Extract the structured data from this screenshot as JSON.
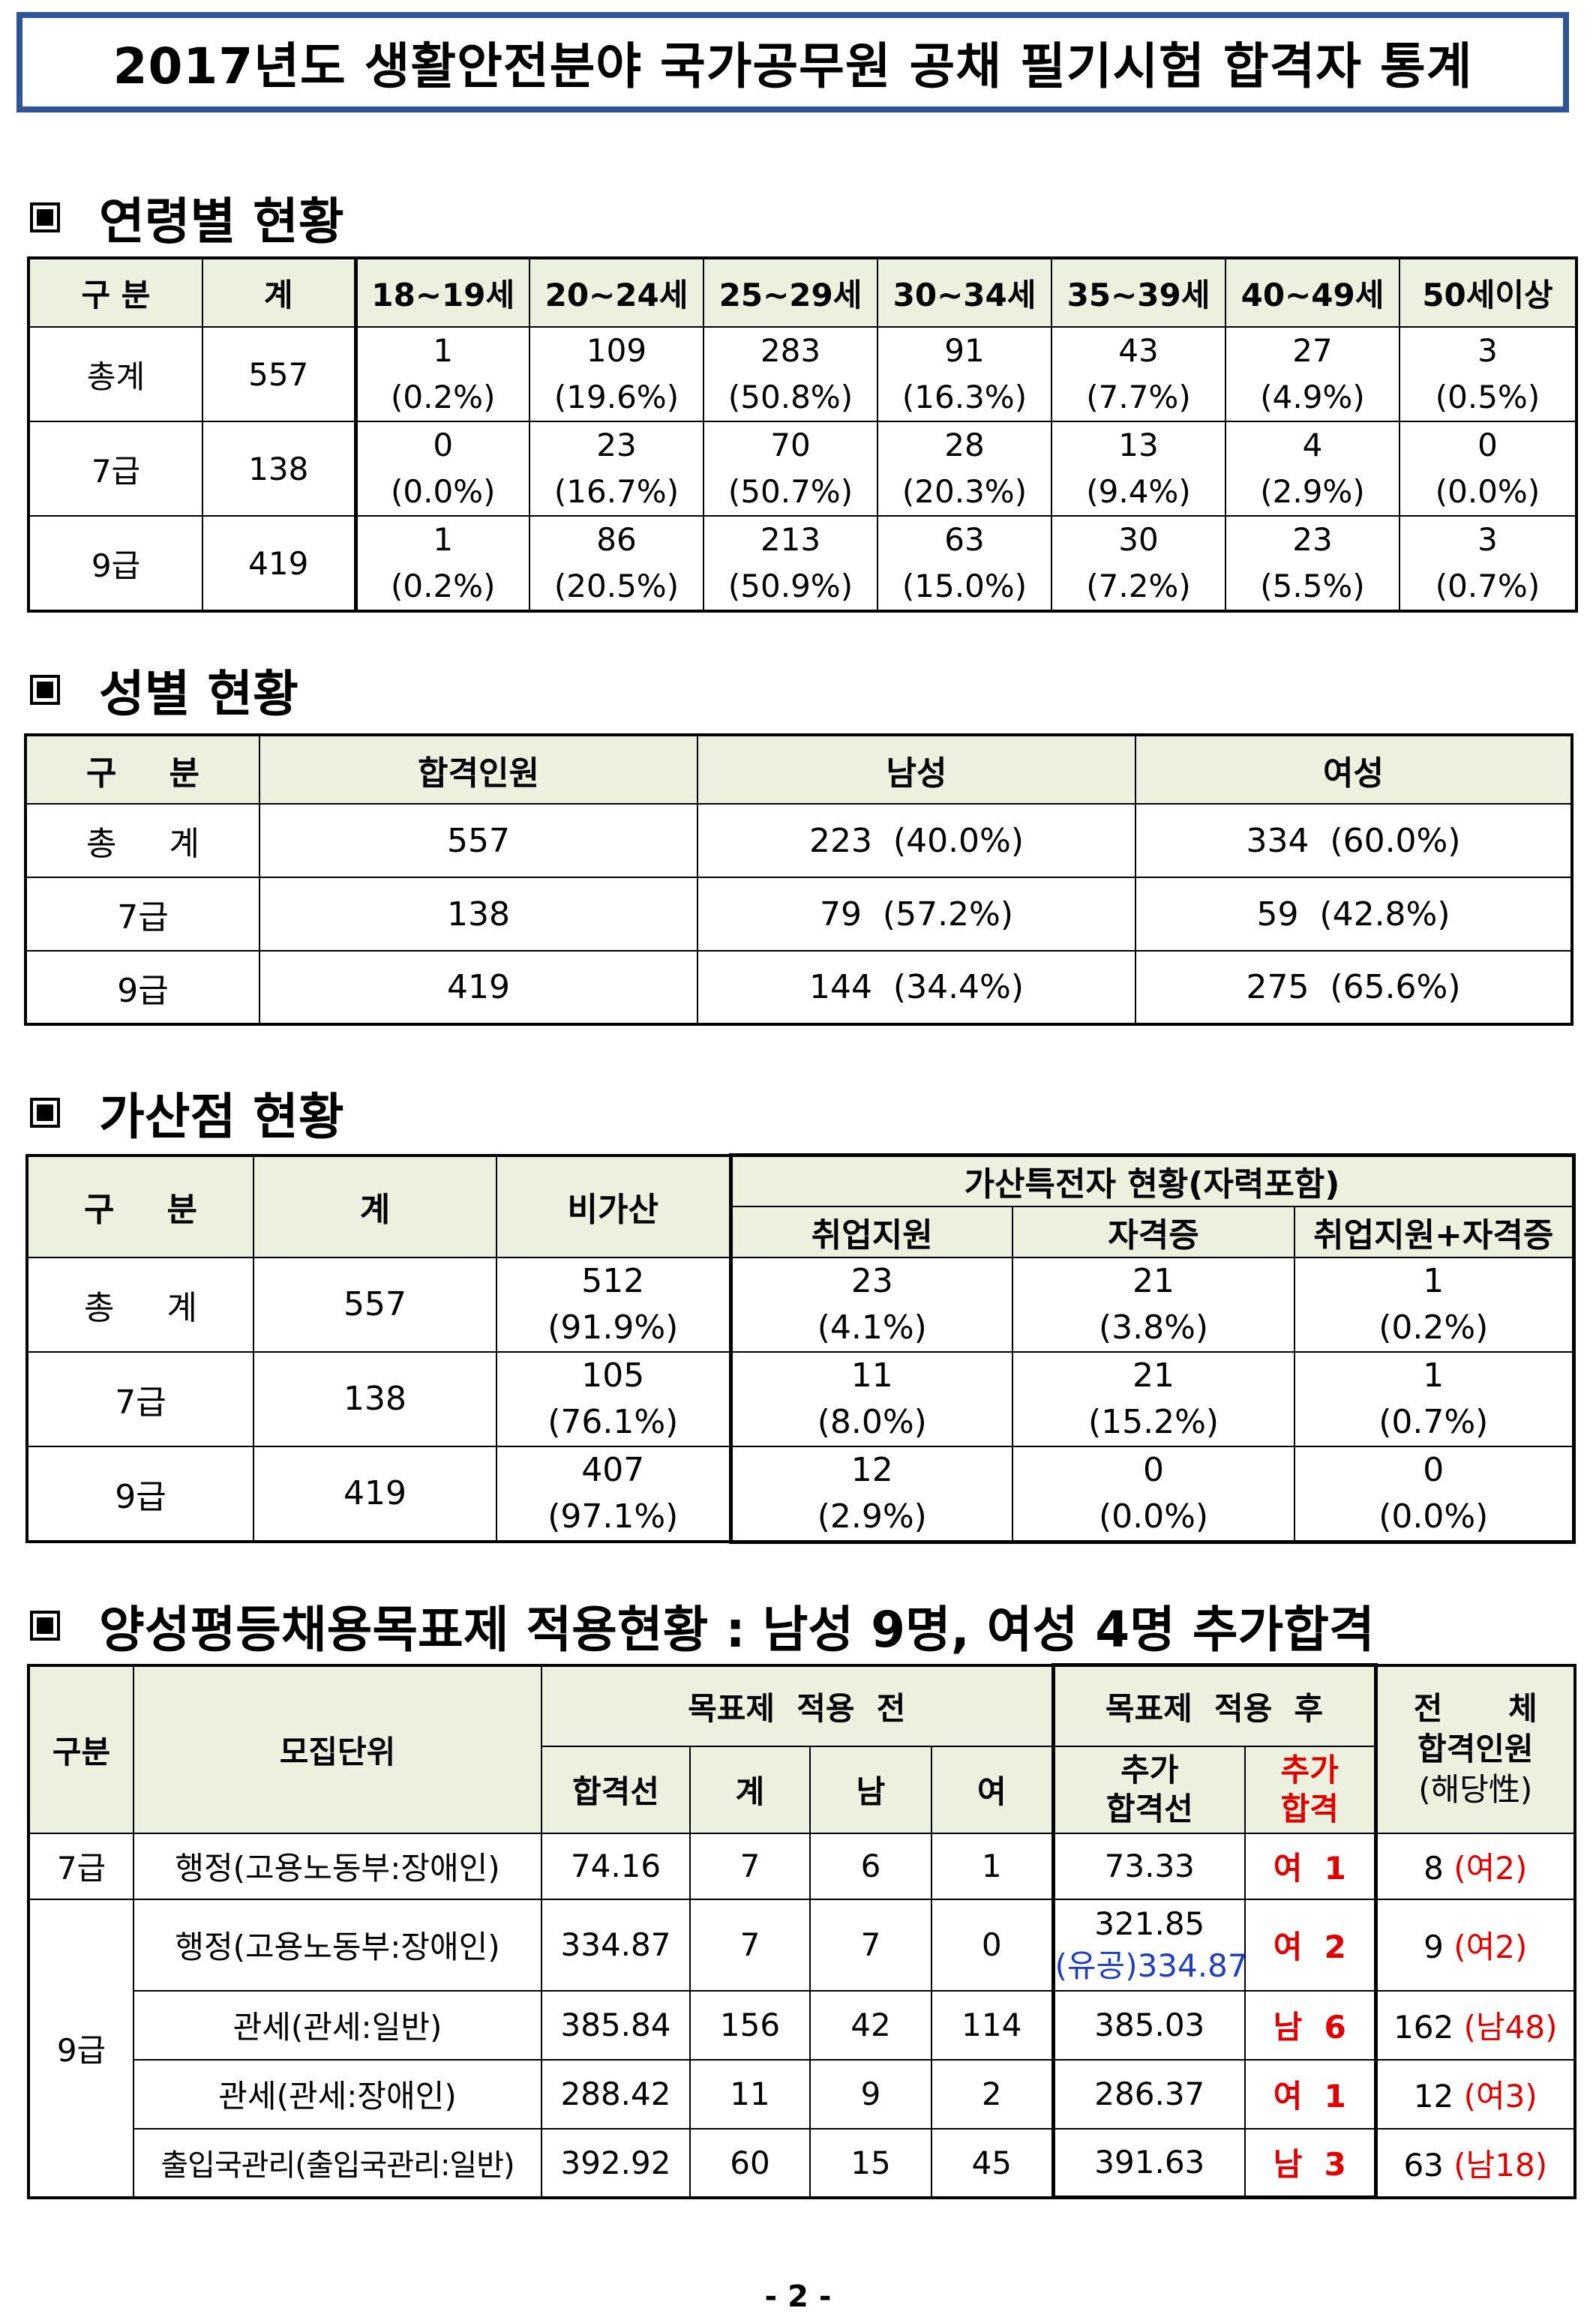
{
  "title": "2017년도 생활안전분야 국가공무원 공채 필기시험 합격자 통계",
  "sections": {
    "age": "연령별 현황",
    "gender": "성별 현황",
    "bonus": "가산점 현황",
    "equality": "양성평등채용목표제 적용현황 : 남성 9명, 여성 4명 추가합격"
  },
  "age_table": {
    "headers": [
      "구 분",
      "계",
      "18~19세",
      "20~24세",
      "25~29세",
      "30~34세",
      "35~39세",
      "40~49세",
      "50세이상"
    ],
    "rows": [
      {
        "label": "총계",
        "total": "557",
        "cells": [
          [
            "1",
            "(0.2%)"
          ],
          [
            "109",
            "(19.6%)"
          ],
          [
            "283",
            "(50.8%)"
          ],
          [
            "91",
            "(16.3%)"
          ],
          [
            "43",
            "(7.7%)"
          ],
          [
            "27",
            "(4.9%)"
          ],
          [
            "3",
            "(0.5%)"
          ]
        ]
      },
      {
        "label": "7급",
        "total": "138",
        "cells": [
          [
            "0",
            "(0.0%)"
          ],
          [
            "23",
            "(16.7%)"
          ],
          [
            "70",
            "(50.7%)"
          ],
          [
            "28",
            "(20.3%)"
          ],
          [
            "13",
            "(9.4%)"
          ],
          [
            "4",
            "(2.9%)"
          ],
          [
            "0",
            "(0.0%)"
          ]
        ]
      },
      {
        "label": "9급",
        "total": "419",
        "cells": [
          [
            "1",
            "(0.2%)"
          ],
          [
            "86",
            "(20.5%)"
          ],
          [
            "213",
            "(50.9%)"
          ],
          [
            "63",
            "(15.0%)"
          ],
          [
            "30",
            "(7.2%)"
          ],
          [
            "23",
            "(5.5%)"
          ],
          [
            "3",
            "(0.7%)"
          ]
        ]
      }
    ]
  },
  "gender_table": {
    "headers": [
      "구",
      "분",
      "합격인원",
      "남성",
      "여성"
    ],
    "rows": [
      {
        "label_a": "총",
        "label_b": "계",
        "passed": "557",
        "male": "223  (40.0%)",
        "female": "334  (60.0%)"
      },
      {
        "label_a": "7급",
        "label_b": "",
        "passed": "138",
        "male": "79  (57.2%)",
        "female": "59  (42.8%)"
      },
      {
        "label_a": "9급",
        "label_b": "",
        "passed": "419",
        "male": "144  (34.4%)",
        "female": "275  (65.6%)"
      }
    ]
  },
  "bonus_table": {
    "header_a": "구",
    "header_b": "분",
    "header_total": "계",
    "header_none": "비가산",
    "header_group": "가산특전자  현황(자력포함)",
    "sub_headers": [
      "취업지원",
      "자격증",
      "취업지원+자격증"
    ],
    "rows": [
      {
        "label_a": "총",
        "label_b": "계",
        "total": "557",
        "cells": [
          [
            "512",
            "(91.9%)"
          ],
          [
            "23",
            "(4.1%)"
          ],
          [
            "21",
            "(3.8%)"
          ],
          [
            "1",
            "(0.2%)"
          ]
        ]
      },
      {
        "label_a": "7급",
        "label_b": "",
        "total": "138",
        "cells": [
          [
            "105",
            "(76.1%)"
          ],
          [
            "11",
            "(8.0%)"
          ],
          [
            "21",
            "(15.2%)"
          ],
          [
            "1",
            "(0.7%)"
          ]
        ]
      },
      {
        "label_a": "9급",
        "label_b": "",
        "total": "419",
        "cells": [
          [
            "407",
            "(97.1%)"
          ],
          [
            "12",
            "(2.9%)"
          ],
          [
            "0",
            "(0.0%)"
          ],
          [
            "0",
            "(0.0%)"
          ]
        ]
      }
    ]
  },
  "equality_table": {
    "h_grade": "구분",
    "h_unit": "모집단위",
    "h_before": "목표제  적용  전",
    "h_after": "목표제  적용  후",
    "h_total_a": "전      체",
    "h_total_b": "합격인원",
    "h_total_c": "(해당性)",
    "h_cut": "합격선",
    "h_sum": "계",
    "h_male": "남",
    "h_female": "여",
    "h_add_cut_a": "추가",
    "h_add_cut_b": "합격선",
    "h_add_pass_a": "추가",
    "h_add_pass_b": "합격",
    "grade7": "7급",
    "grade9": "9급",
    "rows": [
      {
        "unit": "행정(고용노동부:장애인)",
        "cut": "74.16",
        "sum": "7",
        "male": "6",
        "female": "1",
        "add_cut": "73.33",
        "add_cut_note": "",
        "add_pass": "여  1",
        "total": "8",
        "total_note": "(여2)"
      },
      {
        "unit": "행정(고용노동부:장애인)",
        "cut": "334.87",
        "sum": "7",
        "male": "7",
        "female": "0",
        "add_cut": "321.85",
        "add_cut_note": "(유공)334.87",
        "add_pass": "여  2",
        "total": "9",
        "total_note": "(여2)"
      },
      {
        "unit": "관세(관세:일반)",
        "cut": "385.84",
        "sum": "156",
        "male": "42",
        "female": "114",
        "add_cut": "385.03",
        "add_cut_note": "",
        "add_pass": "남  6",
        "total": "162",
        "total_note": "(남48)"
      },
      {
        "unit": "관세(관세:장애인)",
        "cut": "288.42",
        "sum": "11",
        "male": "9",
        "female": "2",
        "add_cut": "286.37",
        "add_cut_note": "",
        "add_pass": "여  1",
        "total": "12",
        "total_note": "(여3)"
      },
      {
        "unit": "출입국관리(출입국관리:일반)",
        "cut": "392.92",
        "sum": "60",
        "male": "15",
        "female": "45",
        "add_cut": "391.63",
        "add_cut_note": "",
        "add_pass": "남  3",
        "total": "63",
        "total_note": "(남18)"
      }
    ]
  },
  "page_number": "- 2 -",
  "colors": {
    "title_border": "#2f5597",
    "header_bg": "#ebf1de",
    "red": "#e00000",
    "blue": "#1f3fbf"
  }
}
